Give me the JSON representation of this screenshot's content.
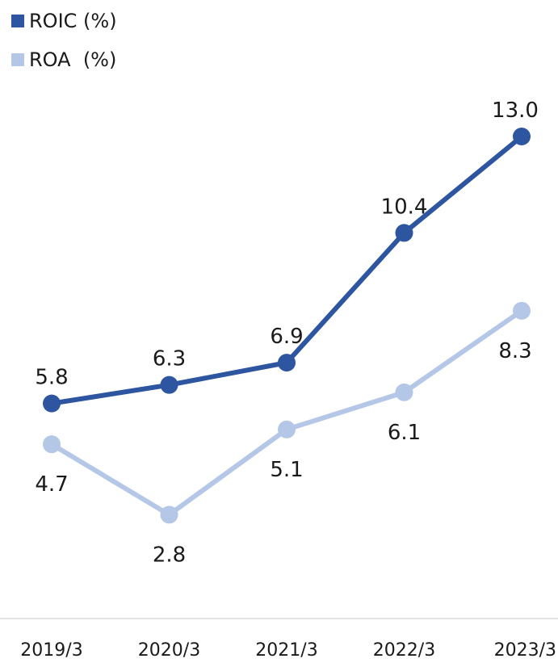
{
  "chart_data": {
    "type": "line",
    "categories": [
      "2019/3",
      "2020/3",
      "2021/3",
      "2022/3",
      "2023/3"
    ],
    "series": [
      {
        "name": "ROIC (%)",
        "values": [
          5.8,
          6.3,
          6.9,
          10.4,
          13.0
        ],
        "labels": [
          "5.8",
          "6.3",
          "6.9",
          "10.4",
          "13.0"
        ],
        "color": "#2e55a0",
        "label_position": "above"
      },
      {
        "name": "ROA  (%)",
        "values": [
          4.7,
          2.8,
          5.1,
          6.1,
          8.3
        ],
        "labels": [
          "4.7",
          "2.8",
          "5.1",
          "6.1",
          "8.3"
        ],
        "color": "#b4c7e7",
        "label_position": "below"
      }
    ],
    "title": "",
    "xlabel": "",
    "ylabel": "",
    "ylim": [
      0,
      14
    ],
    "grid": false,
    "legend": "top-left",
    "axis_color": "#d9d9d9"
  }
}
